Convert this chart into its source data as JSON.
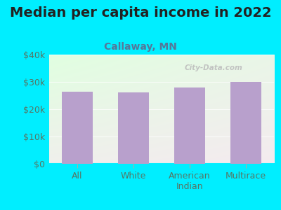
{
  "title": "Median per capita income in 2022",
  "subtitle": "Callaway, MN",
  "categories": [
    "All",
    "White",
    "American\nIndian",
    "Multirace"
  ],
  "values": [
    26500,
    26200,
    28000,
    30000
  ],
  "bar_color": "#b8a0cc",
  "background_outer": "#00eeff",
  "ylim": [
    0,
    40000
  ],
  "yticks": [
    0,
    10000,
    20000,
    30000,
    40000
  ],
  "ytick_labels": [
    "$0",
    "$10k",
    "$20k",
    "$30k",
    "$40k"
  ],
  "title_fontsize": 14,
  "subtitle_fontsize": 10,
  "tick_fontsize": 9,
  "xtick_fontsize": 9,
  "watermark": "City-Data.com",
  "title_color": "#222222",
  "subtitle_color": "#557799",
  "tick_color": "#557766",
  "xtick_color": "#557766"
}
